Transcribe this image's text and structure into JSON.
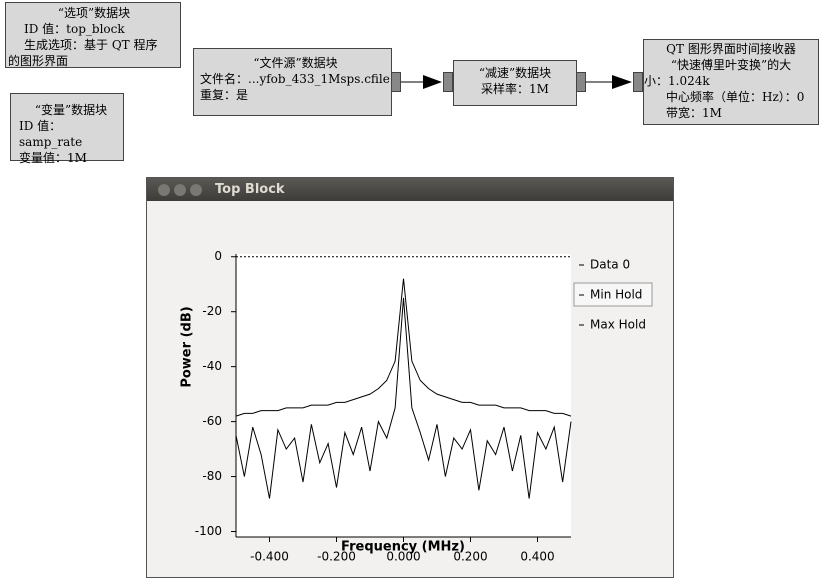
{
  "blocks": {
    "options": {
      "title": "“选项”数据块",
      "lines": [
        "ID 值：top_block",
        "生成选项：基于 QT 程序",
        "的图形界面"
      ]
    },
    "variable": {
      "title": "“变量”数据块",
      "lines": [
        "ID 值：samp_rate",
        "变量值：1M"
      ]
    },
    "file_source": {
      "title": "“文件源”数据块",
      "lines": [
        "文件名：...yfob_433_1Msps.cfile",
        "重复：是"
      ]
    },
    "throttle": {
      "title": "“减速”数据块",
      "lines": [
        "采样率：1M"
      ]
    },
    "qt_sink": {
      "title": "QT 图形界面时间接收器",
      "lines": [
        "“快速傅里叶变换”的大",
        "小：1.024k",
        "中心频率（单位：Hz）：0",
        "带宽：1M"
      ]
    }
  },
  "window": {
    "title": "Top Block"
  },
  "chart_data": {
    "type": "line",
    "x_label": "Frequency (MHz)",
    "y_label": "Power (dB)",
    "x": [
      -0.5,
      -0.475,
      -0.45,
      -0.425,
      -0.4,
      -0.375,
      -0.35,
      -0.325,
      -0.3,
      -0.275,
      -0.25,
      -0.225,
      -0.2,
      -0.175,
      -0.15,
      -0.125,
      -0.1,
      -0.075,
      -0.05,
      -0.025,
      0,
      0.025,
      0.05,
      0.075,
      0.1,
      0.125,
      0.15,
      0.175,
      0.2,
      0.225,
      0.25,
      0.275,
      0.3,
      0.325,
      0.35,
      0.375,
      0.4,
      0.425,
      0.45,
      0.475,
      0.5
    ],
    "series": [
      {
        "name": "Data 0",
        "color": "#000000",
        "values": [
          -65,
          -80,
          -62,
          -72,
          -88,
          -63,
          -70,
          -66,
          -82,
          -61,
          -75,
          -68,
          -84,
          -64,
          -72,
          -62,
          -78,
          -60,
          -66,
          -55,
          -15,
          -55,
          -64,
          -74,
          -61,
          -80,
          -66,
          -70,
          -63,
          -85,
          -67,
          -72,
          -62,
          -78,
          -65,
          -88,
          -64,
          -70,
          -62,
          -82,
          -60
        ]
      },
      {
        "name": "Min Hold",
        "color": "#000000",
        "dashed": true,
        "values": [
          0,
          0,
          0,
          0,
          0,
          0,
          0,
          0,
          0,
          0,
          0,
          0,
          0,
          0,
          0,
          0,
          0,
          0,
          0,
          0,
          0,
          0,
          0,
          0,
          0,
          0,
          0,
          0,
          0,
          0,
          0,
          0,
          0,
          0,
          0,
          0,
          0,
          0,
          0,
          0,
          0
        ]
      },
      {
        "name": "Max Hold",
        "color": "#000000",
        "values": [
          -58,
          -57,
          -57,
          -56,
          -56,
          -56,
          -55,
          -55,
          -55,
          -54,
          -54,
          -54,
          -53,
          -53,
          -52,
          -51,
          -50,
          -48,
          -45,
          -38,
          -8,
          -38,
          -45,
          -48,
          -50,
          -51,
          -52,
          -53,
          -53,
          -54,
          -54,
          -54,
          -55,
          -55,
          -55,
          -56,
          -56,
          -56,
          -57,
          -57,
          -58
        ]
      }
    ],
    "xlim": [
      -0.5,
      0.5
    ],
    "ylim": [
      -102,
      1
    ],
    "xticks": [
      {
        "value": -0.4,
        "label": "-0.400"
      },
      {
        "value": -0.2,
        "label": "-0.200"
      },
      {
        "value": 0,
        "label": "0.000"
      },
      {
        "value": 0.2,
        "label": "0.200"
      },
      {
        "value": 0.4,
        "label": "0.400"
      }
    ],
    "yticks": [
      0,
      -20,
      -40,
      -60,
      -80,
      -100
    ],
    "legend_selected": "Min Hold"
  }
}
